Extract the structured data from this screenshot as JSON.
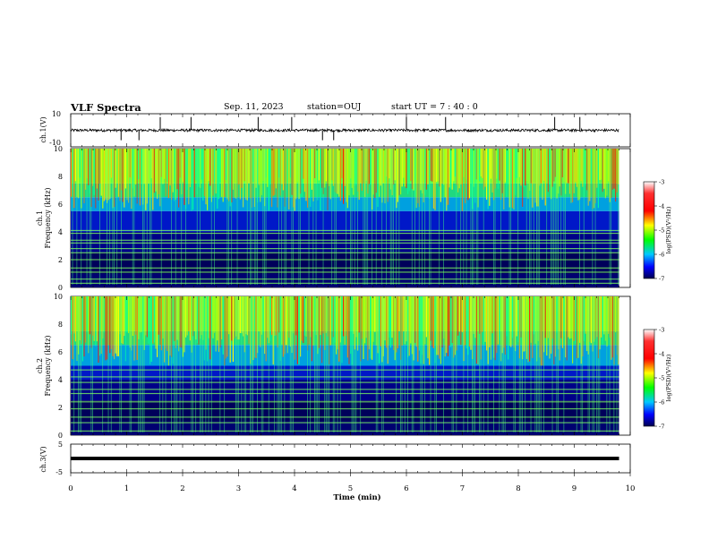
{
  "header": {
    "title": "VLF Spectra",
    "date": "Sep. 11, 2023",
    "station": "station=OUJ",
    "start": "start UT = 7 : 40 : 0"
  },
  "panels": {
    "ch1_waveform": {
      "ylabel": "ch.1(V)",
      "yticks": [
        "10",
        "-10"
      ]
    },
    "ch1_spectrogram": {
      "ylabel": "ch.1 Frequency (kHz)",
      "yticks": [
        "0",
        "2",
        "4",
        "6",
        "8",
        "10"
      ]
    },
    "ch2_spectrogram": {
      "ylabel": "ch.2 Frequency (kHz)",
      "yticks": [
        "0",
        "2",
        "4",
        "6",
        "8",
        "10"
      ]
    },
    "ch3_waveform": {
      "ylabel": "ch.3(V)",
      "yticks": [
        "5",
        "-5"
      ]
    }
  },
  "colorbar": {
    "label": "log(PSD)(V²/Hz)",
    "ticks": [
      "-3",
      "-4",
      "-5",
      "-6",
      "-7"
    ],
    "colors": [
      "#ffffff",
      "#ff0000",
      "#ffff00",
      "#00ff00",
      "#00c8ff",
      "#0000ff",
      "#000040"
    ]
  },
  "chart_data": [
    {
      "type": "line",
      "name": "ch.1 waveform",
      "ylabel": "ch.1(V)",
      "ylim": [
        -10,
        10
      ],
      "xlim": [
        0,
        10
      ],
      "baseline_v": 0,
      "noise_amplitude_v": 0.8,
      "impulses_min": [
        0.9,
        1.22,
        1.6,
        2.15,
        3.35,
        3.95,
        4.5,
        4.7,
        6.0,
        6.7,
        8.65,
        9.1
      ]
    },
    {
      "type": "heatmap",
      "name": "ch.1 spectrogram",
      "xlabel": "Time (min)",
      "ylabel": "ch.1 Frequency (kHz)",
      "xlim": [
        0,
        9.8
      ],
      "ylim": [
        0,
        10
      ],
      "zlabel": "log(PSD)(V²/Hz)",
      "zlim": [
        -7,
        -3
      ],
      "narrowband_lines_khz": [
        0.3,
        0.6,
        1.1,
        1.4,
        2.0,
        2.5,
        2.8,
        3.2,
        3.4,
        3.9,
        4.1
      ],
      "sferic_band_khz": [
        5.5,
        10
      ],
      "peak_log_psd": -3.5
    },
    {
      "type": "heatmap",
      "name": "ch.2 spectrogram",
      "xlabel": "Time (min)",
      "ylabel": "ch.2 Frequency (kHz)",
      "xlim": [
        0,
        9.8
      ],
      "ylim": [
        0,
        10
      ],
      "zlabel": "log(PSD)(V²/Hz)",
      "zlim": [
        -7,
        -3
      ],
      "narrowband_lines_khz": [
        0.3,
        0.9,
        1.3,
        1.9,
        2.4,
        3.0,
        3.3,
        3.8,
        4.2,
        4.7
      ],
      "sferic_band_khz": [
        5.0,
        10
      ],
      "peak_log_psd": -3.5
    },
    {
      "type": "line",
      "name": "ch.3 waveform",
      "ylabel": "ch.3(V)",
      "ylim": [
        -5,
        5
      ],
      "xlim": [
        0,
        10
      ],
      "baseline_v": 0
    }
  ],
  "x_axis": {
    "label": "Time (min)",
    "ticks": [
      "0",
      "1",
      "2",
      "3",
      "4",
      "5",
      "6",
      "7",
      "8",
      "9",
      "10"
    ]
  }
}
